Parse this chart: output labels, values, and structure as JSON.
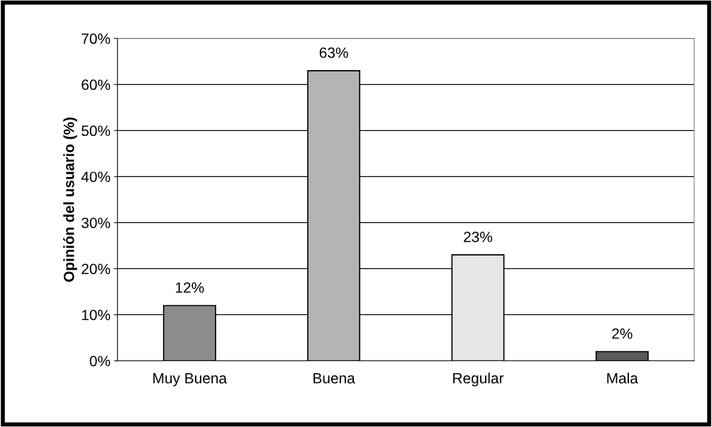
{
  "chart_data": {
    "type": "bar",
    "ylabel": "Opinión del usuario (%)",
    "categories": [
      "Muy Buena",
      "Buena",
      "Regular",
      "Mala"
    ],
    "values": [
      12,
      63,
      23,
      2
    ],
    "colors": [
      "#8c8c8c",
      "#b4b4b4",
      "#e6e6e6",
      "#5a5a5a"
    ],
    "value_labels": [
      "12%",
      "63%",
      "23%",
      "2%"
    ],
    "ylim": [
      0,
      70
    ],
    "yticks": [
      {
        "value": 0,
        "label": "0%"
      },
      {
        "value": 10,
        "label": "10%"
      },
      {
        "value": 20,
        "label": "20%"
      },
      {
        "value": 30,
        "label": "30%"
      },
      {
        "value": 40,
        "label": "40%"
      },
      {
        "value": 50,
        "label": "50%"
      },
      {
        "value": 60,
        "label": "60%"
      },
      {
        "value": 70,
        "label": "70%"
      }
    ],
    "grid": "y",
    "legend": false
  }
}
